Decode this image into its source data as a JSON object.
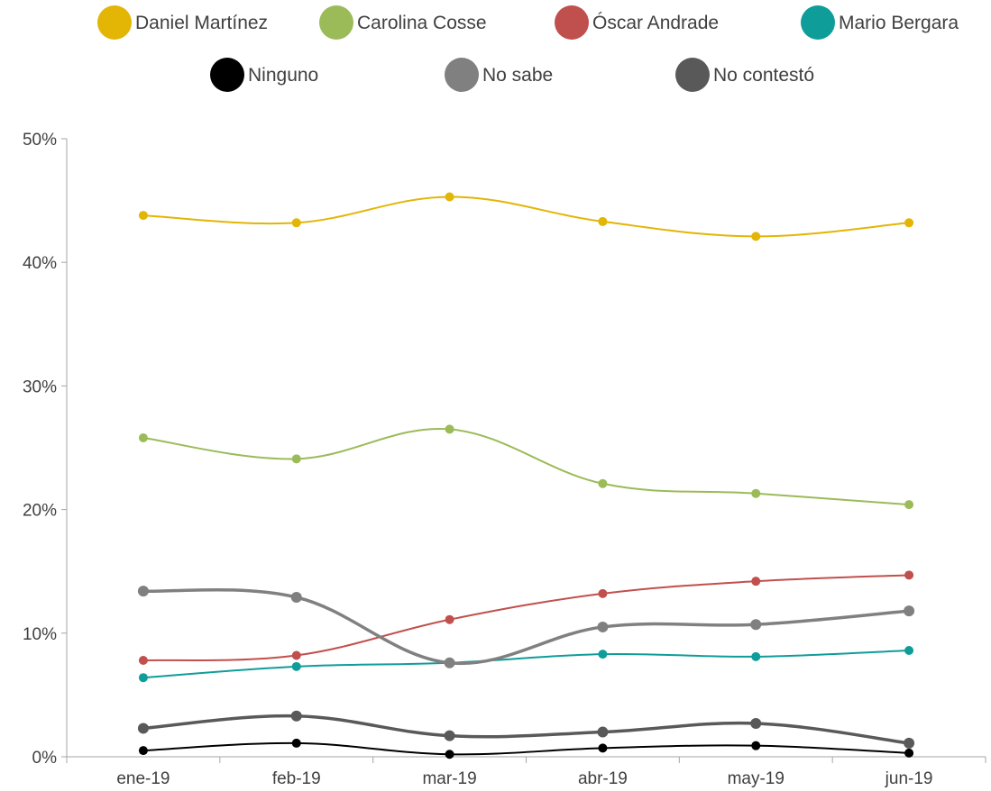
{
  "chart_data": {
    "type": "line",
    "categories": [
      "ene-19",
      "feb-19",
      "mar-19",
      "abr-19",
      "may-19",
      "jun-19"
    ],
    "ylim": [
      0,
      50
    ],
    "y_ticks": [
      0,
      10,
      20,
      30,
      40,
      50
    ],
    "y_tick_labels": [
      "0%",
      "10%",
      "20%",
      "30%",
      "40%",
      "50%"
    ],
    "grid": false,
    "legend_position": "top",
    "smooth": true,
    "series": [
      {
        "name": "Daniel Martínez",
        "color": "#e3b505",
        "values": [
          43.8,
          43.2,
          45.3,
          43.3,
          42.1,
          43.2
        ]
      },
      {
        "name": "Carolina Cosse",
        "color": "#9bbb59",
        "values": [
          25.8,
          24.1,
          26.5,
          22.1,
          21.3,
          20.4
        ]
      },
      {
        "name": "Óscar Andrade",
        "color": "#c0504d",
        "values": [
          7.8,
          8.2,
          11.1,
          13.2,
          14.2,
          14.7
        ]
      },
      {
        "name": "Mario Bergara",
        "color": "#0f9d9a",
        "values": [
          6.4,
          7.3,
          7.6,
          8.3,
          8.1,
          8.6
        ]
      },
      {
        "name": "Ninguno",
        "color": "#000000",
        "values": [
          0.5,
          1.1,
          0.2,
          0.7,
          0.9,
          0.3
        ]
      },
      {
        "name": "No sabe",
        "color": "#808080",
        "values": [
          13.4,
          12.9,
          7.6,
          10.5,
          10.7,
          11.8
        ]
      },
      {
        "name": "No contestó",
        "color": "#595959",
        "values": [
          2.3,
          3.3,
          1.7,
          2.0,
          2.7,
          1.1
        ]
      }
    ]
  }
}
